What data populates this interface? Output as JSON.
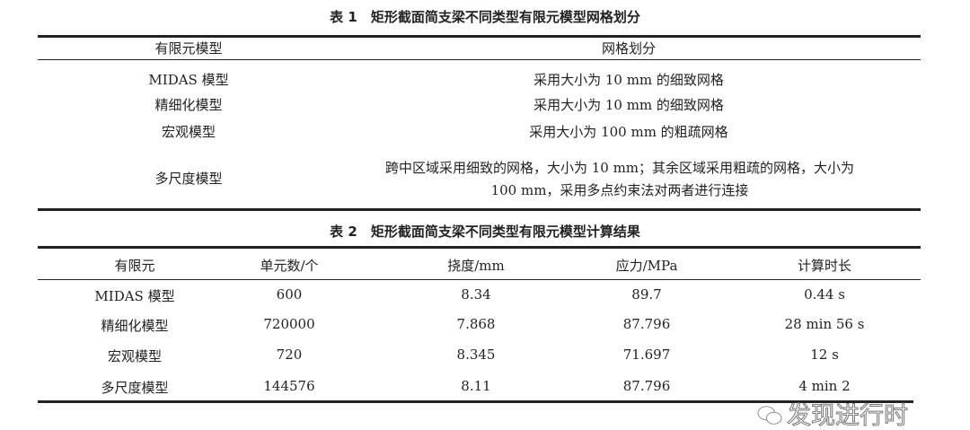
{
  "table1": {
    "title": "表 1　矩形截面简支梁不同类型有限元模型网格划分",
    "headers": [
      "有限元模型",
      "网格划分"
    ],
    "rows": [
      [
        "MIDAS 模型",
        "采用大小为 10 mm 的细致网格"
      ],
      [
        "精细化模型",
        "采用大小为 10 mm 的细致网格"
      ],
      [
        "宏观模型",
        "采用大小为 100 mm 的粗疏网格"
      ],
      [
        "多尺度模型",
        "跨中区域采用细致的网格，大小为 10 mm；其余区域采用粗疏的网格，大小为",
        "100 mm，采用多点约束法对两者进行连接"
      ]
    ]
  },
  "table2": {
    "title": "表 2　矩形截面简支梁不同类型有限元模型计算结果",
    "headers": [
      "有限元",
      "单元数/个",
      "挠度/mm",
      "应力/MPa",
      "计算时长"
    ],
    "rows": [
      [
        "MIDAS 模型",
        "600",
        "8.34",
        "89.7",
        "0.44 s"
      ],
      [
        "精细化模型",
        "720000",
        "7.868",
        "87.796",
        "28 min 56 s"
      ],
      [
        "宏观模型",
        "720",
        "8.345",
        "71.697",
        "12 s"
      ],
      [
        "多尺度模型",
        "144576",
        "8.11",
        "87.796",
        "4 min 2"
      ]
    ]
  },
  "watermark": {
    "icon": "wechat-icon",
    "text": "发现进行时"
  }
}
